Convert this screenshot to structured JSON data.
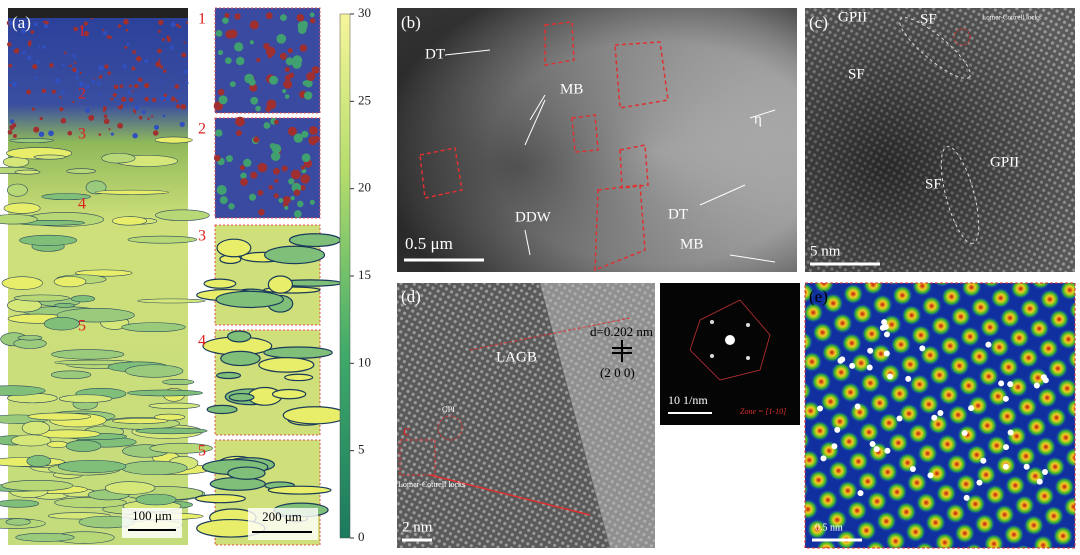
{
  "panel_a": {
    "label": "(a)",
    "regions": [
      "1",
      "2",
      "3",
      "4",
      "5"
    ],
    "scale_bar": "100 μm"
  },
  "insets": {
    "labels": [
      "1",
      "2",
      "3",
      "4",
      "5"
    ],
    "scale_bar": "200 μm"
  },
  "colorbar": {
    "ylim": [
      0,
      30
    ],
    "yticks": [
      0,
      5,
      10,
      15,
      20,
      25,
      30
    ]
  },
  "panel_b": {
    "label": "(b)",
    "annotations": [
      "DT",
      "MB",
      "η",
      "DDW",
      "DT",
      "MB"
    ],
    "scale_bar": "0.5 μm"
  },
  "panel_c": {
    "label": "(c)",
    "annotations": [
      "GPII",
      "SF",
      "Lomer-Cottrell locks",
      "SF",
      "SF",
      "GPII"
    ],
    "scale_bar": "5 nm"
  },
  "panel_d": {
    "label": "(d)",
    "annotations": [
      "LAGB",
      "d=0.202 nm",
      "(2 0 0)",
      "GPI",
      "Lomer-Cottrell locks",
      "c"
    ],
    "scale_bar": "2 nm"
  },
  "fft": {
    "scale_bar": "10 1/nm",
    "zone": "Zone = [1-10]"
  },
  "panel_e": {
    "label": "(e)",
    "scale_bar": "0.5 nm"
  }
}
